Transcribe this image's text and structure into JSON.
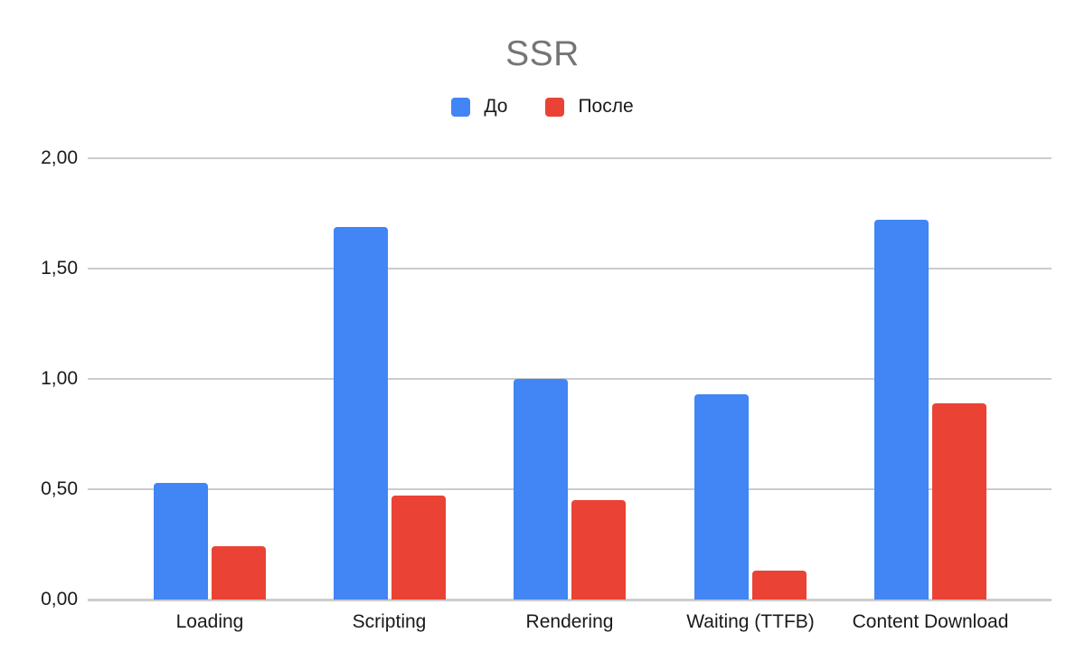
{
  "chart_data": {
    "type": "bar",
    "title": "SSR",
    "title_color": "#757575",
    "categories": [
      "Loading",
      "Scripting",
      "Rendering",
      "Waiting (TTFB)",
      "Content Download"
    ],
    "series": [
      {
        "name": "До",
        "color": "#4285F4",
        "values": [
          0.53,
          1.69,
          1.0,
          0.93,
          1.72
        ]
      },
      {
        "name": "После",
        "color": "#EA4335",
        "values": [
          0.24,
          0.47,
          0.45,
          0.13,
          0.89
        ]
      }
    ],
    "xlabel": "",
    "ylabel": "",
    "ylim": [
      0,
      2
    ],
    "yticks": [
      {
        "value": 0.0,
        "label": "0,00"
      },
      {
        "value": 0.5,
        "label": "0,50"
      },
      {
        "value": 1.0,
        "label": "1,00"
      },
      {
        "value": 1.5,
        "label": "1,50"
      },
      {
        "value": 2.0,
        "label": "2,00"
      }
    ],
    "grid": "horizontal",
    "gridline_color": "#cccccc",
    "axis_text_color": "#1a1a1a",
    "background_color": "#ffffff",
    "legend_position": "top",
    "decimal_separator": ","
  }
}
